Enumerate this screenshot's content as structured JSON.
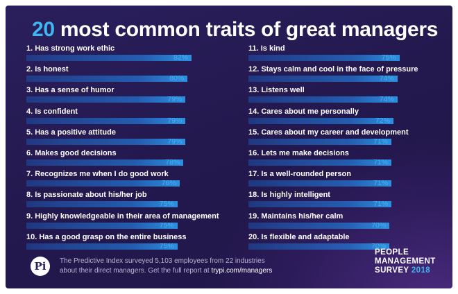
{
  "title": {
    "highlight": "20",
    "rest": "most common traits of great managers"
  },
  "chart_data": {
    "type": "bar",
    "title": "20 most common traits of great managers",
    "unit": "%",
    "categories": [
      "1. Has strong work ethic",
      "2. Is honest",
      "3. Has a sense of humor",
      "4. Is confident",
      "5. Has a positive attitude",
      "6. Makes good decisions",
      "7. Recognizes me when I do good work",
      "8. Is passionate about his/her job",
      "9. Highly knowledgeable in their area of management",
      "10. Has a good grasp on the entire business",
      "11. Is kind",
      "12. Stays calm and cool in the face of pressure",
      "13. Listens well",
      "14. Cares about me personally",
      "15. Cares about my career and development",
      "16. Lets me make decisions",
      "17. Is a well-rounded person",
      "18. Is highly intelligent",
      "19. Maintains his/her calm",
      "20. Is flexible and adaptable"
    ],
    "values": [
      82,
      80,
      79,
      79,
      79,
      78,
      76,
      75,
      75,
      75,
      75,
      74,
      74,
      72,
      71,
      71,
      71,
      71,
      70,
      70
    ],
    "value_labels": [
      "82%",
      "80%",
      "79%",
      "79%",
      "79%",
      "78%",
      "76%",
      "75%",
      "75%",
      "75%",
      "75%",
      "74%",
      "74%",
      "72%",
      "71%",
      "71%",
      "71%",
      "71%",
      "70%",
      "70%"
    ],
    "colors": {
      "bar": "#2d8fe0",
      "value_label": "#45b3ef",
      "highlight": "#3eb6f0"
    }
  },
  "footer": {
    "logo_text": "Pi",
    "logo_icon": "predictive-index-logo",
    "note_line1": "The Predictive Index surveyed 5,103 employees from 22 industries",
    "note_line2_prefix": "about their direct managers. Get the full report at ",
    "note_link": "trypi.com/managers",
    "survey_line1": "PEOPLE",
    "survey_line2": "MANAGEMENT",
    "survey_line3_text": "SURVEY",
    "survey_year": "2018"
  }
}
